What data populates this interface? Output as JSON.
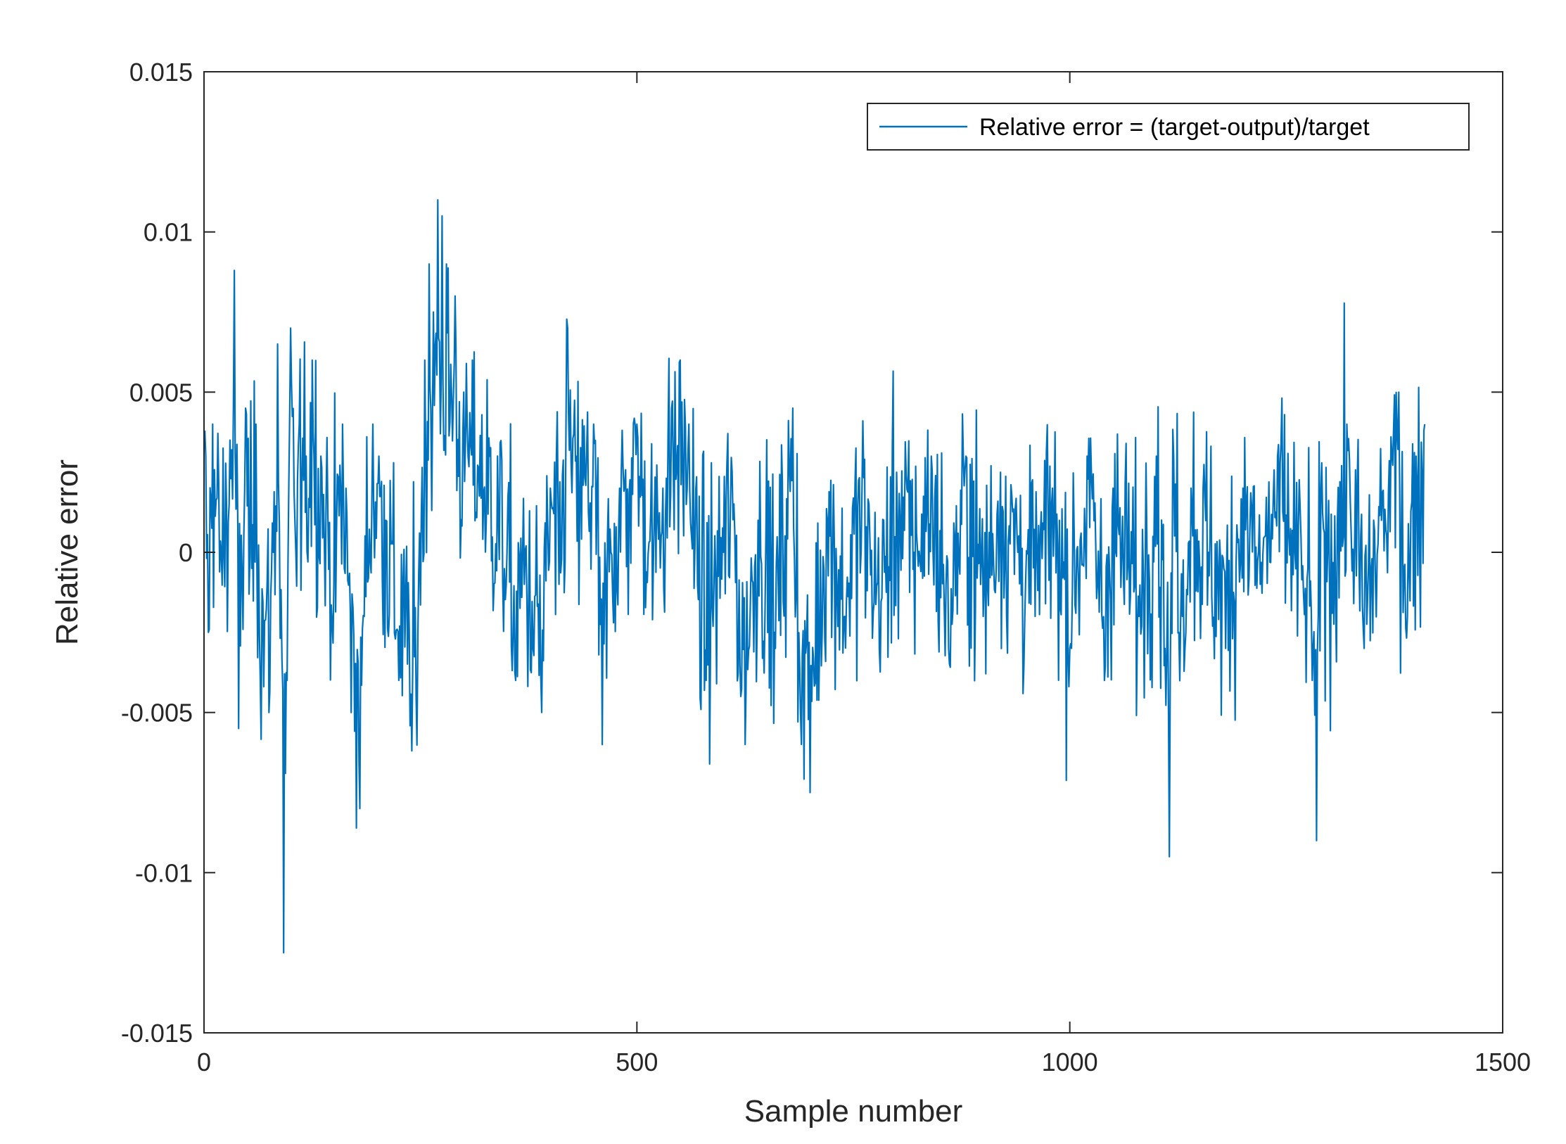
{
  "chart_data": {
    "type": "line",
    "title": "",
    "xlabel": "Sample number",
    "ylabel": "Relative error",
    "xlim": [
      0,
      1500
    ],
    "ylim": [
      -0.015,
      0.015
    ],
    "x_ticks": [
      0,
      500,
      1000,
      1500
    ],
    "x_tick_labels": [
      "0",
      "500",
      "1000",
      "1500"
    ],
    "y_ticks": [
      -0.015,
      -0.01,
      -0.005,
      0,
      0.005,
      0.01,
      0.015
    ],
    "y_tick_labels": [
      "-0.015",
      "-0.01",
      "-0.005",
      "0",
      "0.005",
      "0.01",
      "0.015"
    ],
    "grid": false,
    "legend_position": "top-right",
    "series": [
      {
        "name": "Relative error = (target-output)/target",
        "color": "#0072BD",
        "x_start": 1,
        "x_end": 1410,
        "anchor_x": [
          1,
          5,
          10,
          20,
          30,
          35,
          40,
          48,
          55,
          60,
          65,
          75,
          80,
          85,
          92,
          96,
          100,
          105,
          110,
          118,
          125,
          135,
          150,
          160,
          170,
          180,
          185,
          195,
          210,
          225,
          240,
          245,
          255,
          260,
          265,
          270,
          275,
          280,
          290,
          300,
          310,
          330,
          350,
          360,
          370,
          380,
          390,
          400,
          410,
          420,
          430,
          450,
          460,
          470,
          480,
          500,
          520,
          530,
          540,
          550,
          560,
          570,
          580,
          600,
          610,
          620,
          625,
          640,
          660,
          680,
          690,
          700,
          720,
          740,
          760,
          780,
          800,
          820,
          840,
          860,
          880,
          900,
          920,
          940,
          960,
          980,
          1000,
          1020,
          1040,
          1050,
          1060,
          1080,
          1100,
          1110,
          1115,
          1120,
          1130,
          1140,
          1160,
          1180,
          1200,
          1220,
          1240,
          1260,
          1280,
          1285,
          1290,
          1300,
          1320,
          1340,
          1360,
          1380,
          1390,
          1400,
          1410
        ],
        "anchor_y": [
          0.0038,
          -0.0025,
          0.004,
          0.0,
          0.0035,
          0.0088,
          -0.0055,
          0.0045,
          -0.0005,
          0.004,
          -0.004,
          -0.005,
          0.0,
          0.0065,
          -0.0125,
          -0.004,
          0.007,
          0.001,
          0.004,
          0.003,
          0.006,
          0.003,
          -0.001,
          0.004,
          -0.005,
          -0.008,
          -0.002,
          0.004,
          0.001,
          -0.004,
          -0.0062,
          -0.0045,
          0.006,
          0.009,
          0.0075,
          0.011,
          0.0105,
          0.009,
          0.008,
          0.005,
          0.006,
          0.003,
          0.0,
          -0.004,
          -0.001,
          -0.003,
          -0.005,
          0.002,
          -0.001,
          0.007,
          0.003,
          0.004,
          -0.006,
          0.0,
          0.002,
          0.004,
          0.001,
          0.002,
          0.0045,
          0.006,
          0.004,
          -0.001,
          -0.004,
          0.0,
          0.0025,
          -0.0045,
          -0.006,
          0.001,
          -0.003,
          0.0045,
          -0.006,
          -0.0075,
          0.001,
          -0.002,
          0.002,
          -0.003,
          0.0025,
          0.0,
          0.003,
          -0.003,
          0.003,
          -0.002,
          0.0025,
          0.0,
          -0.002,
          0.002,
          -0.003,
          0.003,
          -0.004,
          0.002,
          0.0,
          -0.002,
          0.003,
          -0.003,
          -0.0095,
          0.003,
          -0.002,
          0.002,
          0.0,
          -0.003,
          0.002,
          -0.001,
          0.003,
          0.0,
          -0.004,
          -0.009,
          0.002,
          -0.001,
          0.004,
          -0.003,
          0.001,
          0.005,
          -0.002,
          0.003,
          0.004
        ]
      }
    ]
  }
}
